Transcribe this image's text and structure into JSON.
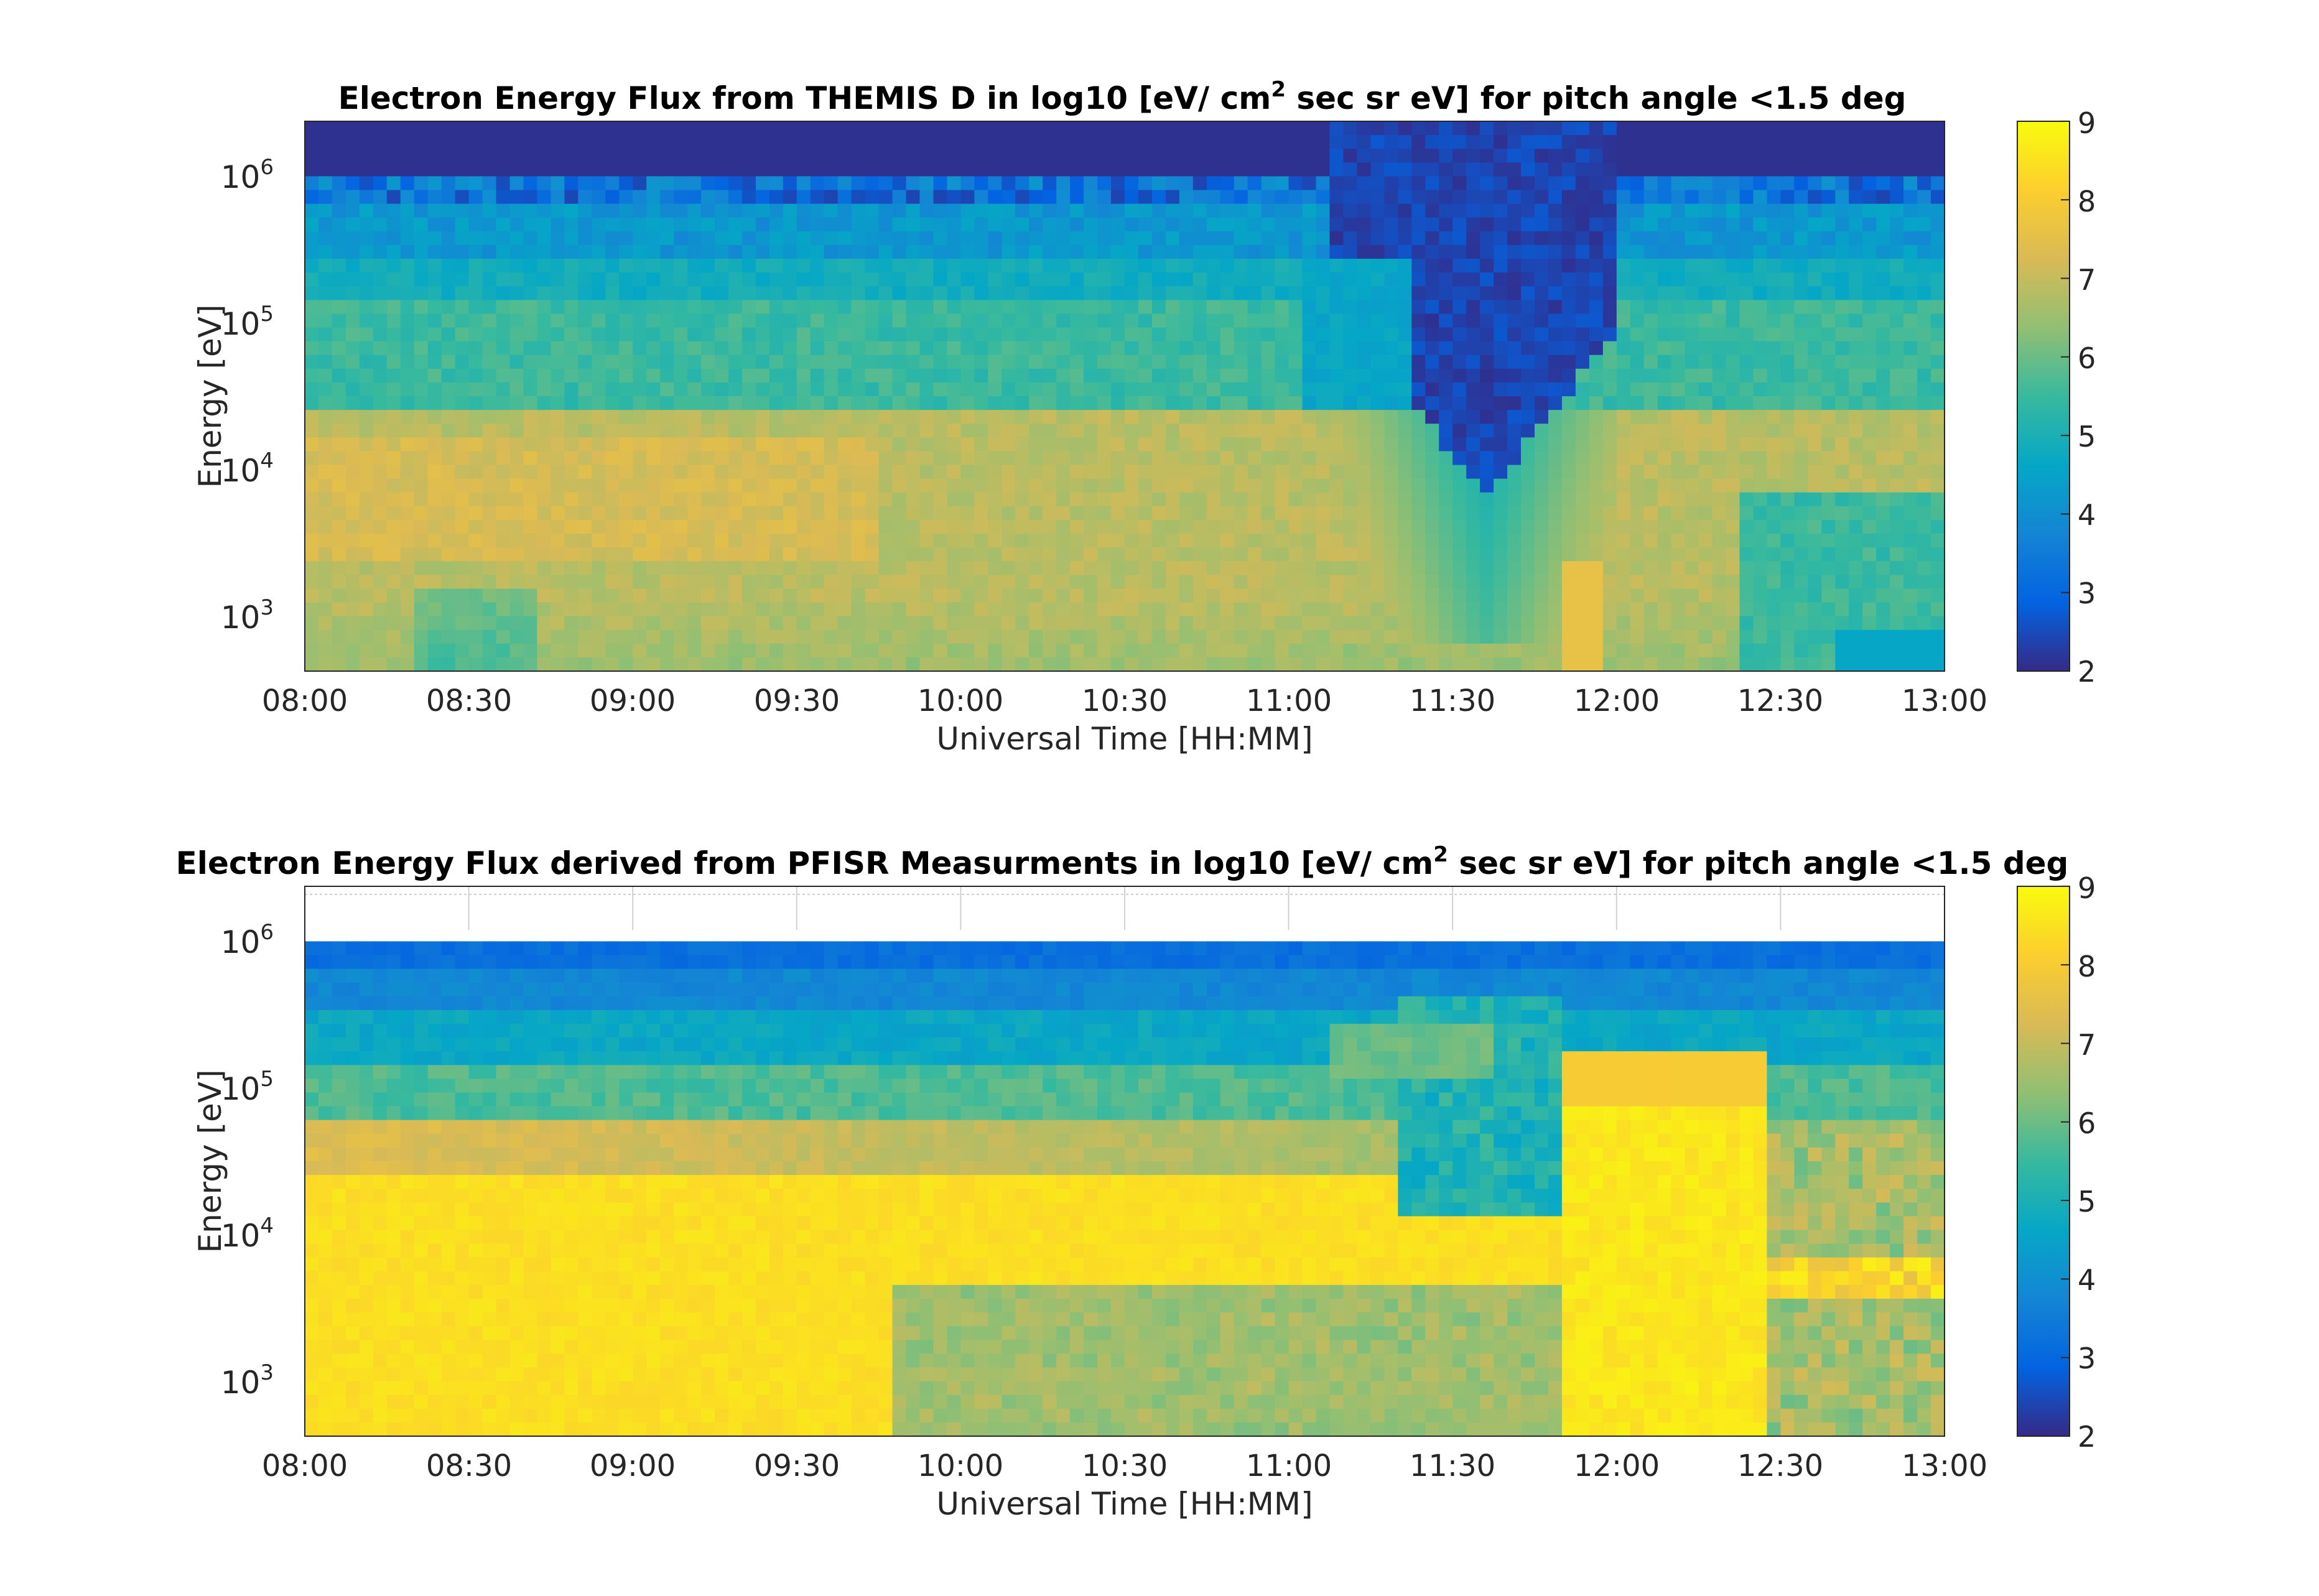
{
  "colors": {
    "colormap": [
      "#352a87",
      "#0363e1",
      "#1485d4",
      "#06a7c6",
      "#38b99e",
      "#92bf73",
      "#d9ba56",
      "#fcce2e",
      "#f9fb0e"
    ],
    "axis": "#262626",
    "grid": "#d0d0d0"
  },
  "chart_data": [
    {
      "type": "heatmap",
      "title": {
        "pre": "Electron Energy Flux from THEMIS D in log10 [eV/ cm",
        "sup": "2",
        "post": " sec sr eV] for pitch angle <1.5 deg"
      },
      "xlabel": "Universal Time [HH:MM]",
      "ylabel": "Energy [eV]",
      "x_ticks": [
        "08:00",
        "08:30",
        "09:00",
        "09:30",
        "10:00",
        "10:30",
        "11:00",
        "11:30",
        "12:00",
        "12:30",
        "13:00"
      ],
      "y_ticks": [
        {
          "base": "10",
          "exp": "3"
        },
        {
          "base": "10",
          "exp": "4"
        },
        {
          "base": "10",
          "exp": "5"
        },
        {
          "base": "10",
          "exp": "6"
        }
      ],
      "y_scale": "log",
      "colorbar": {
        "ticks": [
          "2",
          "3",
          "4",
          "5",
          "6",
          "7",
          "8",
          "9"
        ],
        "range": [
          2,
          9
        ],
        "label": ""
      },
      "grid": false
    },
    {
      "type": "heatmap",
      "title": {
        "pre": "Electron Energy Flux derived from PFISR Measurments in log10 [eV/ cm",
        "sup": "2",
        "post": " sec sr eV] for pitch angle <1.5 deg"
      },
      "xlabel": "Universal Time [HH:MM]",
      "ylabel": "Energy [eV]",
      "x_ticks": [
        "08:00",
        "08:30",
        "09:00",
        "09:30",
        "10:00",
        "10:30",
        "11:00",
        "11:30",
        "12:00",
        "12:30",
        "13:00"
      ],
      "y_ticks": [
        {
          "base": "10",
          "exp": "3"
        },
        {
          "base": "10",
          "exp": "4"
        },
        {
          "base": "10",
          "exp": "5"
        },
        {
          "base": "10",
          "exp": "6"
        }
      ],
      "y_scale": "log",
      "colorbar": {
        "ticks": [
          "2",
          "3",
          "4",
          "5",
          "6",
          "7",
          "8",
          "9"
        ],
        "range": [
          2,
          9
        ],
        "label": ""
      },
      "grid": true
    }
  ]
}
